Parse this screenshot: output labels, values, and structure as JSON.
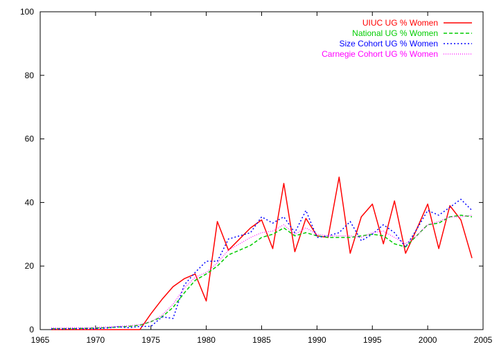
{
  "chart_data": {
    "type": "line",
    "title": "",
    "xlabel": "",
    "ylabel": "",
    "xlim": [
      1965,
      2005
    ],
    "ylim": [
      0,
      100
    ],
    "xticks": [
      1965,
      1970,
      1975,
      1980,
      1985,
      1990,
      1995,
      2000,
      2005
    ],
    "yticks": [
      0,
      20,
      40,
      60,
      80,
      100
    ],
    "grid": false,
    "legend_position": "top-right",
    "series": [
      {
        "name": "UIUC UG % Women",
        "color": "#ff0000",
        "dash": "solid",
        "x": [
          1966,
          1967,
          1968,
          1969,
          1970,
          1971,
          1972,
          1973,
          1974,
          1975,
          1976,
          1977,
          1978,
          1979,
          1980,
          1981,
          1982,
          1983,
          1984,
          1985,
          1986,
          1987,
          1988,
          1989,
          1990,
          1991,
          1992,
          1993,
          1994,
          1995,
          1996,
          1997,
          1998,
          1999,
          2000,
          2001,
          2002,
          2003,
          2004
        ],
        "values": [
          0,
          0,
          0,
          0,
          0,
          0,
          0,
          0,
          0,
          5,
          9.5,
          13.5,
          16,
          17.5,
          9,
          34,
          25,
          28.5,
          32,
          34.5,
          25.5,
          46,
          24.5,
          35,
          29.5,
          29,
          48,
          24,
          35.5,
          39.5,
          27,
          40.5,
          24,
          31.5,
          39.5,
          25.5,
          39,
          34.5,
          22.5
        ]
      },
      {
        "name": "National UG % Women",
        "color": "#00cc00",
        "dash": "dashed",
        "x": [
          1966,
          1967,
          1968,
          1969,
          1970,
          1971,
          1972,
          1973,
          1974,
          1975,
          1976,
          1977,
          1978,
          1979,
          1980,
          1981,
          1982,
          1983,
          1984,
          1985,
          1986,
          1987,
          1988,
          1989,
          1990,
          1991,
          1992,
          1993,
          1994,
          1995,
          1996,
          1997,
          1998,
          1999,
          2000,
          2001,
          2002,
          2003,
          2004
        ],
        "values": [
          0.3,
          0.3,
          0.3,
          0.4,
          0.5,
          0.6,
          0.8,
          1.0,
          1.4,
          2.5,
          4,
          7,
          11.5,
          15.5,
          17.5,
          20,
          23.5,
          25,
          26.5,
          29,
          30,
          32,
          29.5,
          30.5,
          29.5,
          29,
          29,
          29,
          29.5,
          30,
          29.5,
          27,
          26,
          29.5,
          33,
          33.5,
          35.5,
          36,
          35.5
        ]
      },
      {
        "name": "Size Cohort UG % Women",
        "color": "#0000ff",
        "dash": "dotted",
        "x": [
          1966,
          1967,
          1968,
          1969,
          1970,
          1971,
          1972,
          1973,
          1974,
          1975,
          1976,
          1977,
          1978,
          1979,
          1980,
          1981,
          1982,
          1983,
          1984,
          1985,
          1986,
          1987,
          1988,
          1989,
          1990,
          1991,
          1992,
          1993,
          1994,
          1995,
          1996,
          1997,
          1998,
          1999,
          2000,
          2001,
          2002,
          2003,
          2004
        ],
        "values": [
          0.2,
          0.2,
          0.3,
          0.3,
          0.3,
          0.5,
          0.9,
          0.6,
          1.0,
          1.0,
          4,
          3.5,
          14,
          18,
          21.5,
          21.5,
          28.5,
          29.5,
          30.5,
          35.5,
          33.5,
          35.5,
          30.5,
          37.5,
          29,
          29.5,
          30.5,
          34,
          28,
          30,
          33,
          30.5,
          26,
          31.5,
          37.5,
          36,
          38.5,
          41,
          37.5
        ]
      },
      {
        "name": "Carnegie Cohort UG % Women",
        "color": "#ff00ff",
        "dash": "dotted-fine",
        "x": [
          1966,
          1967,
          1968,
          1969,
          1970,
          1971,
          1972,
          1973,
          1974,
          1975,
          1976,
          1977,
          1978,
          1979,
          1980,
          1981,
          1982,
          1983,
          1984,
          1985,
          1986,
          1987,
          1988,
          1989,
          1990,
          1991,
          1992,
          1993,
          1994,
          1995,
          1996,
          1997,
          1998,
          1999,
          2000,
          2001,
          2002,
          2003,
          2004
        ],
        "values": [
          0.5,
          0.5,
          0.6,
          0.6,
          0.7,
          0.8,
          1.0,
          1.2,
          1.6,
          2.5,
          4.5,
          8,
          13,
          16.5,
          18,
          21,
          25,
          27,
          29,
          30.5,
          31,
          33,
          30,
          32,
          30,
          29.5,
          29.5,
          29.5,
          29,
          30.5,
          31,
          29,
          27,
          29.5,
          33,
          34,
          35.5,
          35.5,
          36
        ]
      }
    ]
  }
}
